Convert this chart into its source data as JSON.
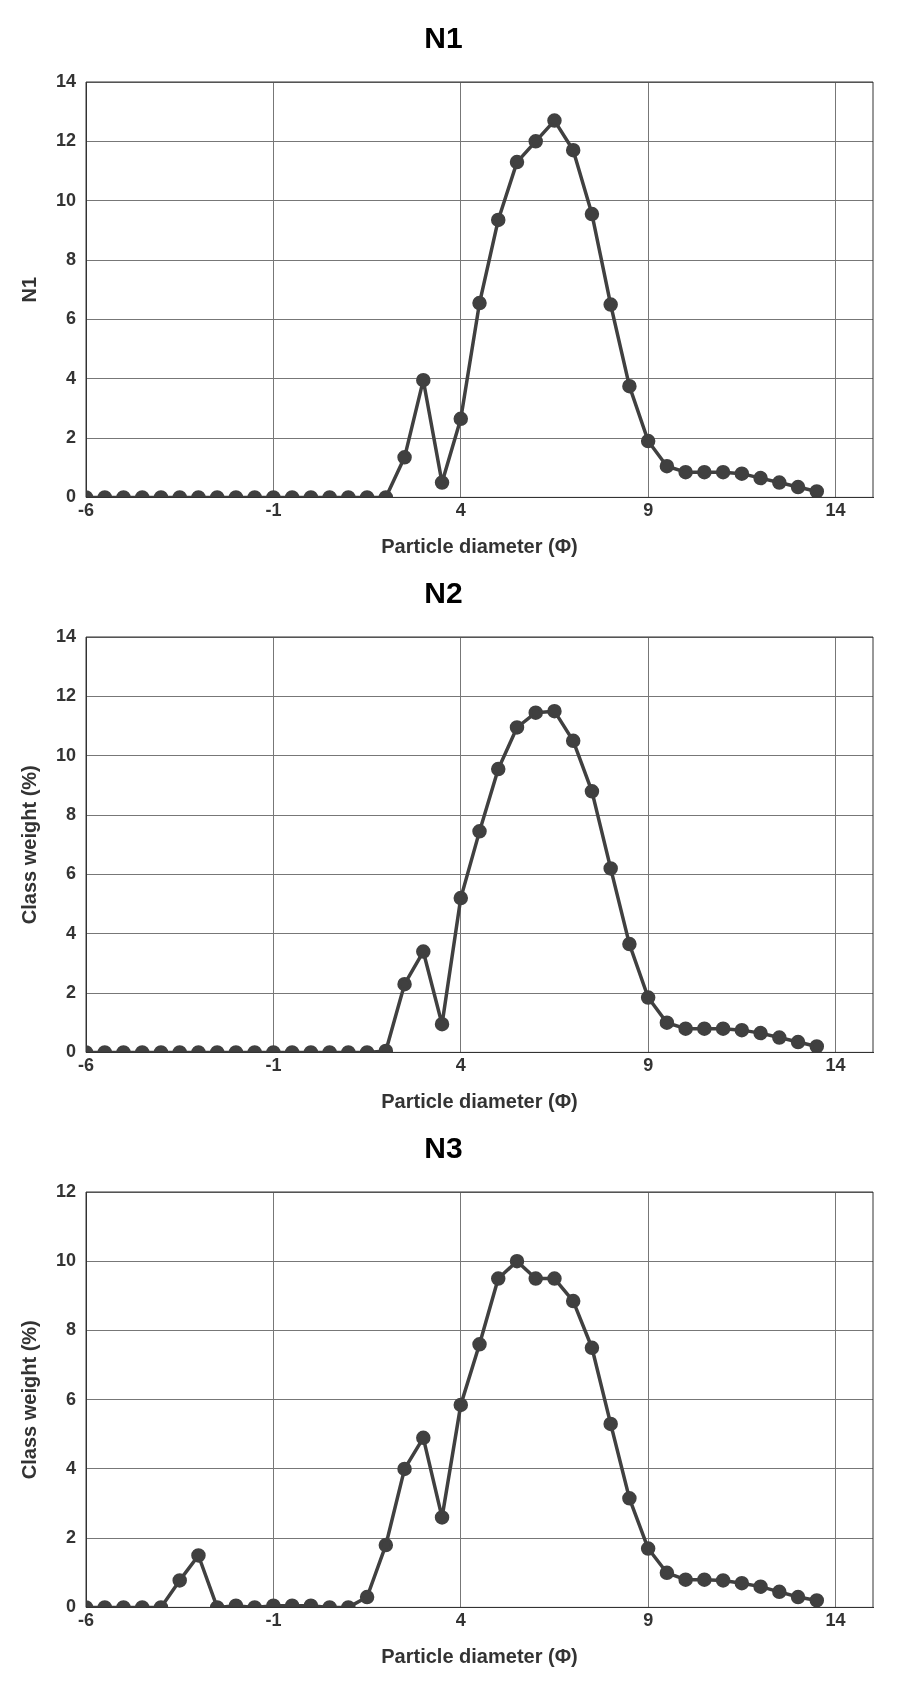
{
  "chart_data": [
    {
      "type": "line",
      "title": "N1",
      "xlabel": "Particle diameter (Φ)",
      "ylabel": "N1",
      "x": [
        -6,
        -5.5,
        -5,
        -4.5,
        -4,
        -3.5,
        -3,
        -2.5,
        -2,
        -1.5,
        -1,
        -0.5,
        0,
        0.5,
        1,
        1.5,
        2,
        2.5,
        3,
        3.5,
        4,
        4.5,
        5,
        5.5,
        6,
        6.5,
        7,
        7.5,
        8,
        8.5,
        9,
        9.5,
        10,
        10.5,
        11,
        11.5,
        12,
        12.5,
        13,
        13.5
      ],
      "series": [
        {
          "color": "#404040",
          "values": [
            0,
            0,
            0,
            0,
            0,
            0,
            0,
            0,
            0,
            0,
            0,
            0,
            0,
            0,
            0,
            0,
            0,
            1.35,
            3.95,
            0.5,
            2.65,
            6.55,
            9.35,
            11.3,
            12.0,
            12.7,
            11.7,
            9.55,
            6.5,
            3.75,
            1.9,
            1.05,
            0.85,
            0.85,
            0.85,
            0.8,
            0.65,
            0.5,
            0.35,
            0.2
          ]
        }
      ],
      "xlim": [
        -6,
        15
      ],
      "xticks": [
        -6,
        -1,
        4,
        9,
        14
      ],
      "ylim": [
        0,
        14
      ],
      "yticks": [
        0,
        2,
        4,
        6,
        8,
        10,
        12,
        14
      ],
      "grid": true,
      "legend": false,
      "marker": "circle",
      "line_style": "solid"
    },
    {
      "type": "line",
      "title": "N2",
      "xlabel": "Particle diameter (Φ)",
      "ylabel": "Class weight (%)",
      "x": [
        -6,
        -5.5,
        -5,
        -4.5,
        -4,
        -3.5,
        -3,
        -2.5,
        -2,
        -1.5,
        -1,
        -0.5,
        0,
        0.5,
        1,
        1.5,
        2,
        2.5,
        3,
        3.5,
        4,
        4.5,
        5,
        5.5,
        6,
        6.5,
        7,
        7.5,
        8,
        8.5,
        9,
        9.5,
        10,
        10.5,
        11,
        11.5,
        12,
        12.5,
        13,
        13.5
      ],
      "series": [
        {
          "color": "#404040",
          "values": [
            0,
            0,
            0,
            0,
            0,
            0,
            0,
            0,
            0,
            0,
            0,
            0,
            0,
            0,
            0,
            0,
            0.05,
            2.3,
            3.4,
            0.95,
            5.2,
            7.45,
            9.55,
            10.95,
            11.45,
            11.5,
            10.5,
            8.8,
            6.2,
            3.65,
            1.85,
            1.0,
            0.8,
            0.8,
            0.8,
            0.75,
            0.65,
            0.5,
            0.35,
            0.2
          ]
        }
      ],
      "xlim": [
        -6,
        15
      ],
      "xticks": [
        -6,
        -1,
        4,
        9,
        14
      ],
      "ylim": [
        0,
        14
      ],
      "yticks": [
        0,
        2,
        4,
        6,
        8,
        10,
        12,
        14
      ],
      "grid": true,
      "legend": false,
      "marker": "circle",
      "line_style": "solid"
    },
    {
      "type": "line",
      "title": "N3",
      "xlabel": "Particle diameter (Φ)",
      "ylabel": "Class weight (%)",
      "x": [
        -6,
        -5.5,
        -5,
        -4.5,
        -4,
        -3.5,
        -3,
        -2.5,
        -2,
        -1.5,
        -1,
        -0.5,
        0,
        0.5,
        1,
        1.5,
        2,
        2.5,
        3,
        3.5,
        4,
        4.5,
        5,
        5.5,
        6,
        6.5,
        7,
        7.5,
        8,
        8.5,
        9,
        9.5,
        10,
        10.5,
        11,
        11.5,
        12,
        12.5,
        13,
        13.5
      ],
      "series": [
        {
          "color": "#404040",
          "values": [
            0,
            0,
            0,
            0,
            0,
            0.78,
            1.5,
            0,
            0.05,
            0,
            0.05,
            0.05,
            0.05,
            0,
            0,
            0.3,
            1.8,
            4.0,
            4.9,
            2.6,
            5.85,
            7.6,
            9.5,
            10.0,
            9.5,
            9.5,
            8.85,
            7.5,
            5.3,
            3.15,
            1.7,
            1.0,
            0.8,
            0.8,
            0.78,
            0.7,
            0.6,
            0.45,
            0.3,
            0.2
          ]
        }
      ],
      "xlim": [
        -6,
        15
      ],
      "xticks": [
        -6,
        -1,
        4,
        9,
        14
      ],
      "ylim": [
        0,
        12
      ],
      "yticks": [
        0,
        2,
        4,
        6,
        8,
        10,
        12
      ],
      "grid": true,
      "legend": false,
      "marker": "circle",
      "line_style": "solid"
    }
  ]
}
